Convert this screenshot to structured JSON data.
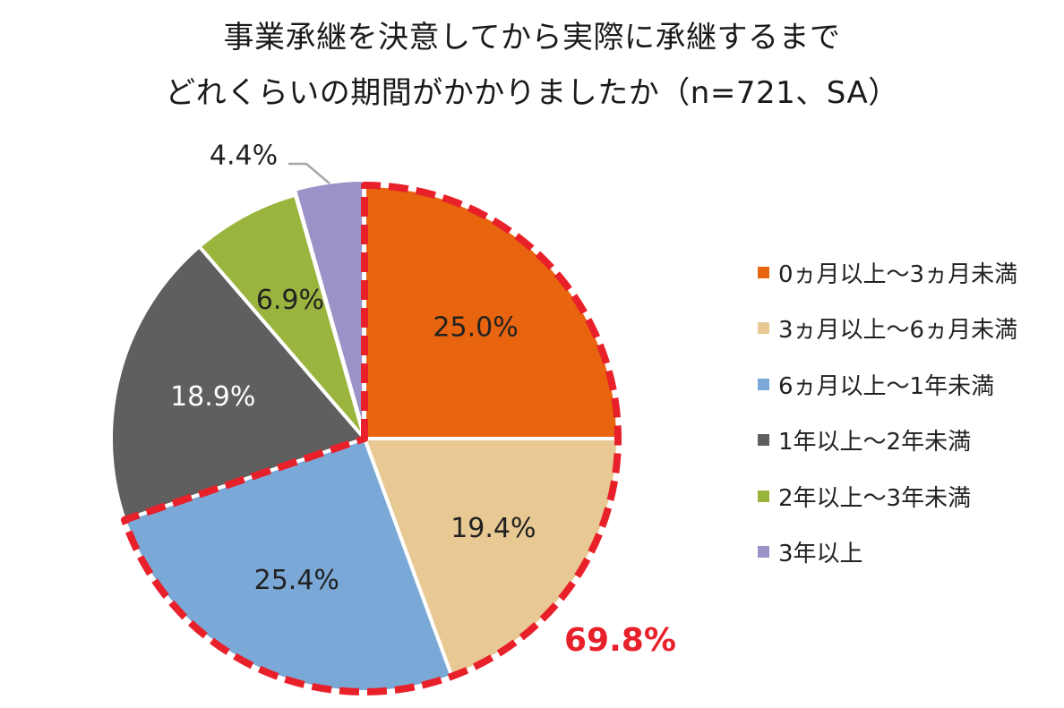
{
  "title": {
    "line1": "事業承継を決意してから実際に承継するまで",
    "line2": "どれくらいの期間がかかりましたか（n=721、SA）"
  },
  "highlight_total": "69.8%",
  "colors": {
    "highlight": "#e8202a",
    "leader": "#a6a6a6",
    "separator": "#ffffff"
  },
  "chart_data": {
    "type": "pie",
    "title": "事業承継を決意してから実際に承継するまで どれくらいの期間がかかりましたか（n=721、SA）",
    "start": "12 o'clock",
    "direction": "clockwise",
    "legend_position": "right",
    "slices": [
      {
        "label": "0ヵ月以上～3ヵ月未満",
        "value": 25.0,
        "display": "25.0%",
        "color": "#e8640f",
        "label_color": "#222222"
      },
      {
        "label": "3ヵ月以上～6ヵ月未満",
        "value": 19.4,
        "display": "19.4%",
        "color": "#e8c993",
        "label_color": "#222222"
      },
      {
        "label": "6ヵ月以上～1年未満",
        "value": 25.4,
        "display": "25.4%",
        "color": "#7ba9d7",
        "label_color": "#222222"
      },
      {
        "label": "1年以上～2年未満",
        "value": 18.9,
        "display": "18.9%",
        "color": "#5f5f5f",
        "label_color": "#ffffff"
      },
      {
        "label": "2年以上～3年未満",
        "value": 6.9,
        "display": "6.9%",
        "color": "#9ab53e",
        "label_color": "#222222"
      },
      {
        "label": "3年以上",
        "value": 4.4,
        "display": "4.4%",
        "color": "#9d92c7",
        "label_color": "#222222",
        "label_outside": true
      }
    ],
    "highlighted_slices": [
      "0ヵ月以上～3ヵ月未満",
      "3ヵ月以上～6ヵ月未満",
      "6ヵ月以上～1年未満"
    ],
    "highlighted_total": "69.8%"
  }
}
